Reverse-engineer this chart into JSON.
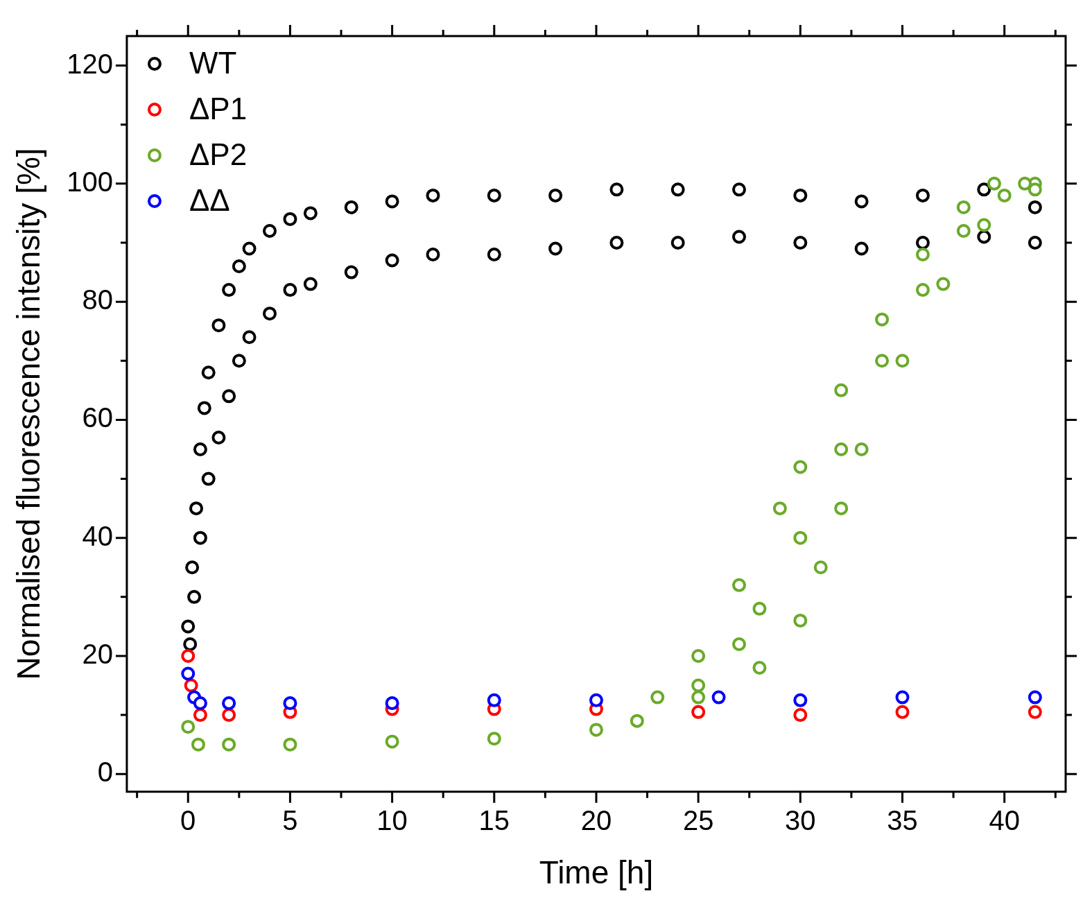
{
  "chart_data": {
    "type": "scatter",
    "xlabel": "Time [h]",
    "ylabel": "Normalised fluorescence intensity [%]",
    "xlim": [
      -3,
      43
    ],
    "ylim": [
      -3,
      125
    ],
    "xticks": [
      {
        "value": -2.5,
        "label": null
      },
      0,
      {
        "value": 2.5,
        "label": null
      },
      5,
      {
        "value": 7.5,
        "label": null
      },
      10,
      {
        "value": 12.5,
        "label": null
      },
      15,
      {
        "value": 17.5,
        "label": null
      },
      20,
      {
        "value": 22.5,
        "label": null
      },
      25,
      {
        "value": 27.5,
        "label": null
      },
      30,
      {
        "value": 32.5,
        "label": null
      },
      35,
      {
        "value": 37.5,
        "label": null
      },
      40,
      {
        "value": 42.5,
        "label": null
      }
    ],
    "yticks": [
      0,
      {
        "value": 10,
        "label": null
      },
      20,
      {
        "value": 30,
        "label": null
      },
      40,
      {
        "value": 50,
        "label": null
      },
      60,
      {
        "value": 70,
        "label": null
      },
      80,
      {
        "value": 90,
        "label": null
      },
      100,
      {
        "value": 110,
        "label": null
      },
      120
    ],
    "grid": false,
    "legend": "top left",
    "marker": "circle",
    "series": [
      {
        "name": "WT",
        "color": "#000000",
        "x": [
          0,
          0.2,
          0.4,
          0.6,
          0.8,
          1,
          1.5,
          2,
          2.5,
          3,
          4,
          5,
          6,
          8,
          10,
          12,
          15,
          18,
          21,
          24,
          27,
          30,
          33,
          36,
          39,
          41.5,
          0.1,
          0.3,
          0.6,
          1,
          1.5,
          2,
          2.5,
          3,
          4,
          5,
          6,
          8,
          10,
          12,
          15,
          18,
          21,
          24,
          27,
          30,
          33,
          36,
          39,
          41.5
        ],
        "values": [
          25,
          35,
          45,
          55,
          62,
          68,
          76,
          82,
          86,
          89,
          92,
          94,
          95,
          96,
          97,
          98,
          98,
          98,
          99,
          99,
          99,
          98,
          97,
          98,
          99,
          96,
          22,
          30,
          40,
          50,
          57,
          64,
          70,
          74,
          78,
          82,
          83,
          85,
          87,
          88,
          88,
          89,
          90,
          90,
          91,
          90,
          89,
          90,
          91,
          90
        ]
      },
      {
        "name": "ΔP1",
        "color": "#ff0000",
        "x": [
          0,
          0.15,
          0.6,
          2,
          5,
          10,
          15,
          20,
          25,
          30,
          35,
          41.5
        ],
        "values": [
          20,
          15,
          10,
          10,
          10.5,
          11,
          11,
          11,
          10.5,
          10,
          10.5,
          10.5
        ]
      },
      {
        "name": "ΔP2",
        "color": "#6aaa2a",
        "x": [
          0,
          0.5,
          2,
          5,
          10,
          15,
          20,
          22,
          23,
          25,
          27,
          29,
          30,
          32,
          34,
          36,
          38,
          39.5,
          41.5,
          25,
          27,
          28,
          30,
          32,
          34,
          36,
          38,
          40,
          41,
          25,
          28,
          30,
          31,
          32,
          33,
          35,
          37,
          39,
          41.5
        ],
        "values": [
          8,
          5,
          5,
          5,
          5.5,
          6,
          7.5,
          9,
          13,
          20,
          32,
          45,
          52,
          65,
          77,
          88,
          96,
          100,
          100,
          15,
          22,
          28,
          40,
          55,
          70,
          82,
          92,
          98,
          100,
          13,
          18,
          26,
          35,
          45,
          55,
          70,
          83,
          93,
          99
        ]
      },
      {
        "name": "ΔΔ",
        "color": "#0000ff",
        "x": [
          0,
          0.3,
          0.6,
          2,
          5,
          10,
          15,
          20,
          26,
          30,
          35,
          41.5
        ],
        "values": [
          17,
          13,
          12,
          12,
          12,
          12,
          12.5,
          12.5,
          13,
          12.5,
          13,
          13
        ]
      }
    ]
  }
}
